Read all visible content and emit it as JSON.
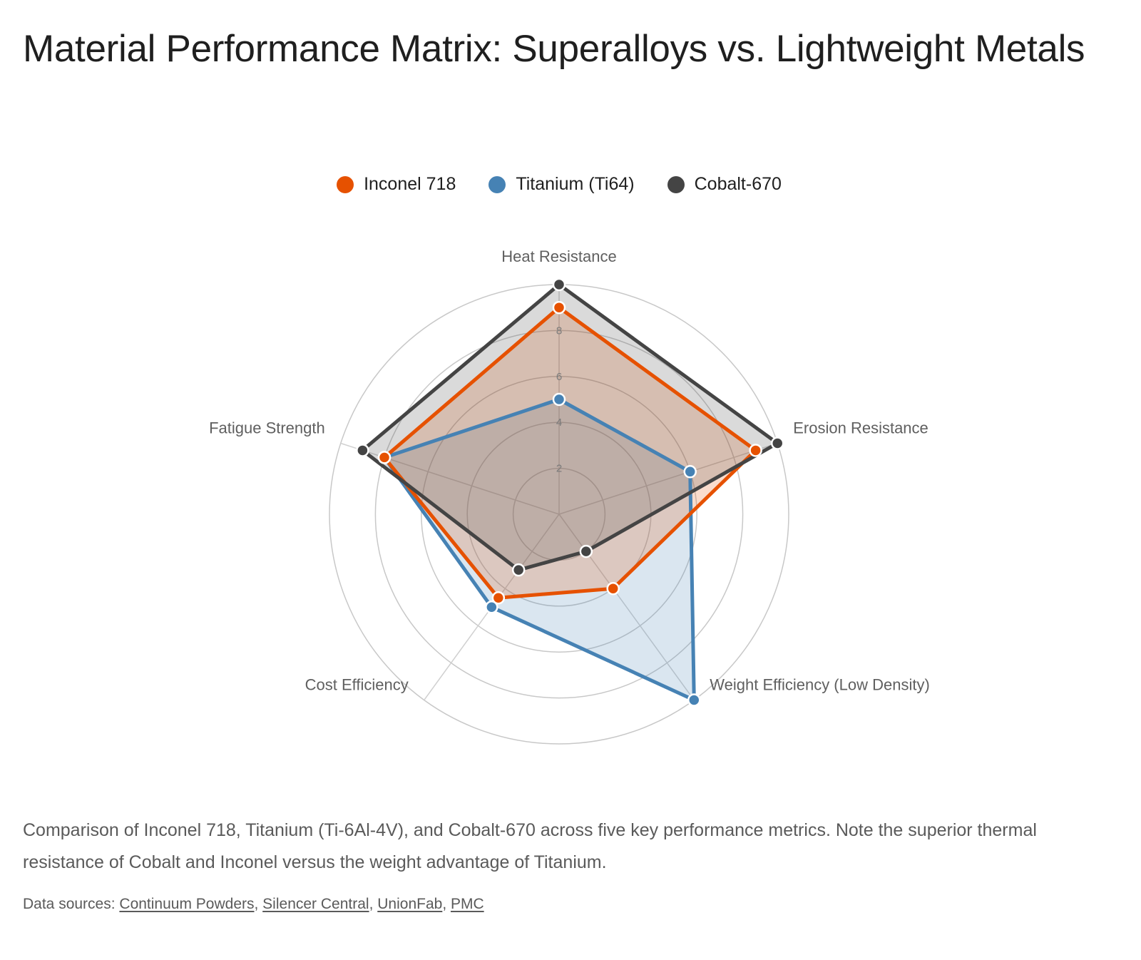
{
  "title": "Material Performance Matrix: Superalloys vs. Lightweight Metals",
  "chart_data": {
    "type": "radar",
    "axes": [
      "Heat Resistance",
      "Erosion Resistance",
      "Weight Efficiency (Low Density)",
      "Cost Efficiency",
      "Fatigue Strength"
    ],
    "rlim": [
      0,
      10
    ],
    "ticks": [
      2,
      4,
      6,
      8
    ],
    "series": [
      {
        "name": "Titanium (Ti64)",
        "color": "#4682b4",
        "values": [
          5,
          6,
          10,
          5,
          8
        ]
      },
      {
        "name": "Inconel 718",
        "color": "#e65100",
        "values": [
          9,
          9,
          4,
          4.5,
          8
        ]
      },
      {
        "name": "Cobalt-670",
        "color": "#444444",
        "values": [
          10,
          10,
          2,
          3,
          9
        ]
      }
    ],
    "legend": [
      {
        "name": "Inconel 718",
        "color": "#e65100"
      },
      {
        "name": "Titanium (Ti64)",
        "color": "#4682b4"
      },
      {
        "name": "Cobalt-670",
        "color": "#444444"
      }
    ]
  },
  "caption": "Comparison of Inconel 718, Titanium (Ti-6Al-4V), and Cobalt-670 across five key performance metrics. Note the superior thermal resistance of Cobalt and Inconel versus the weight advantage of Titanium.",
  "sources": {
    "prefix": "Data sources: ",
    "links": [
      "Continuum Powders",
      "Silencer Central",
      "UnionFab",
      "PMC"
    ]
  }
}
